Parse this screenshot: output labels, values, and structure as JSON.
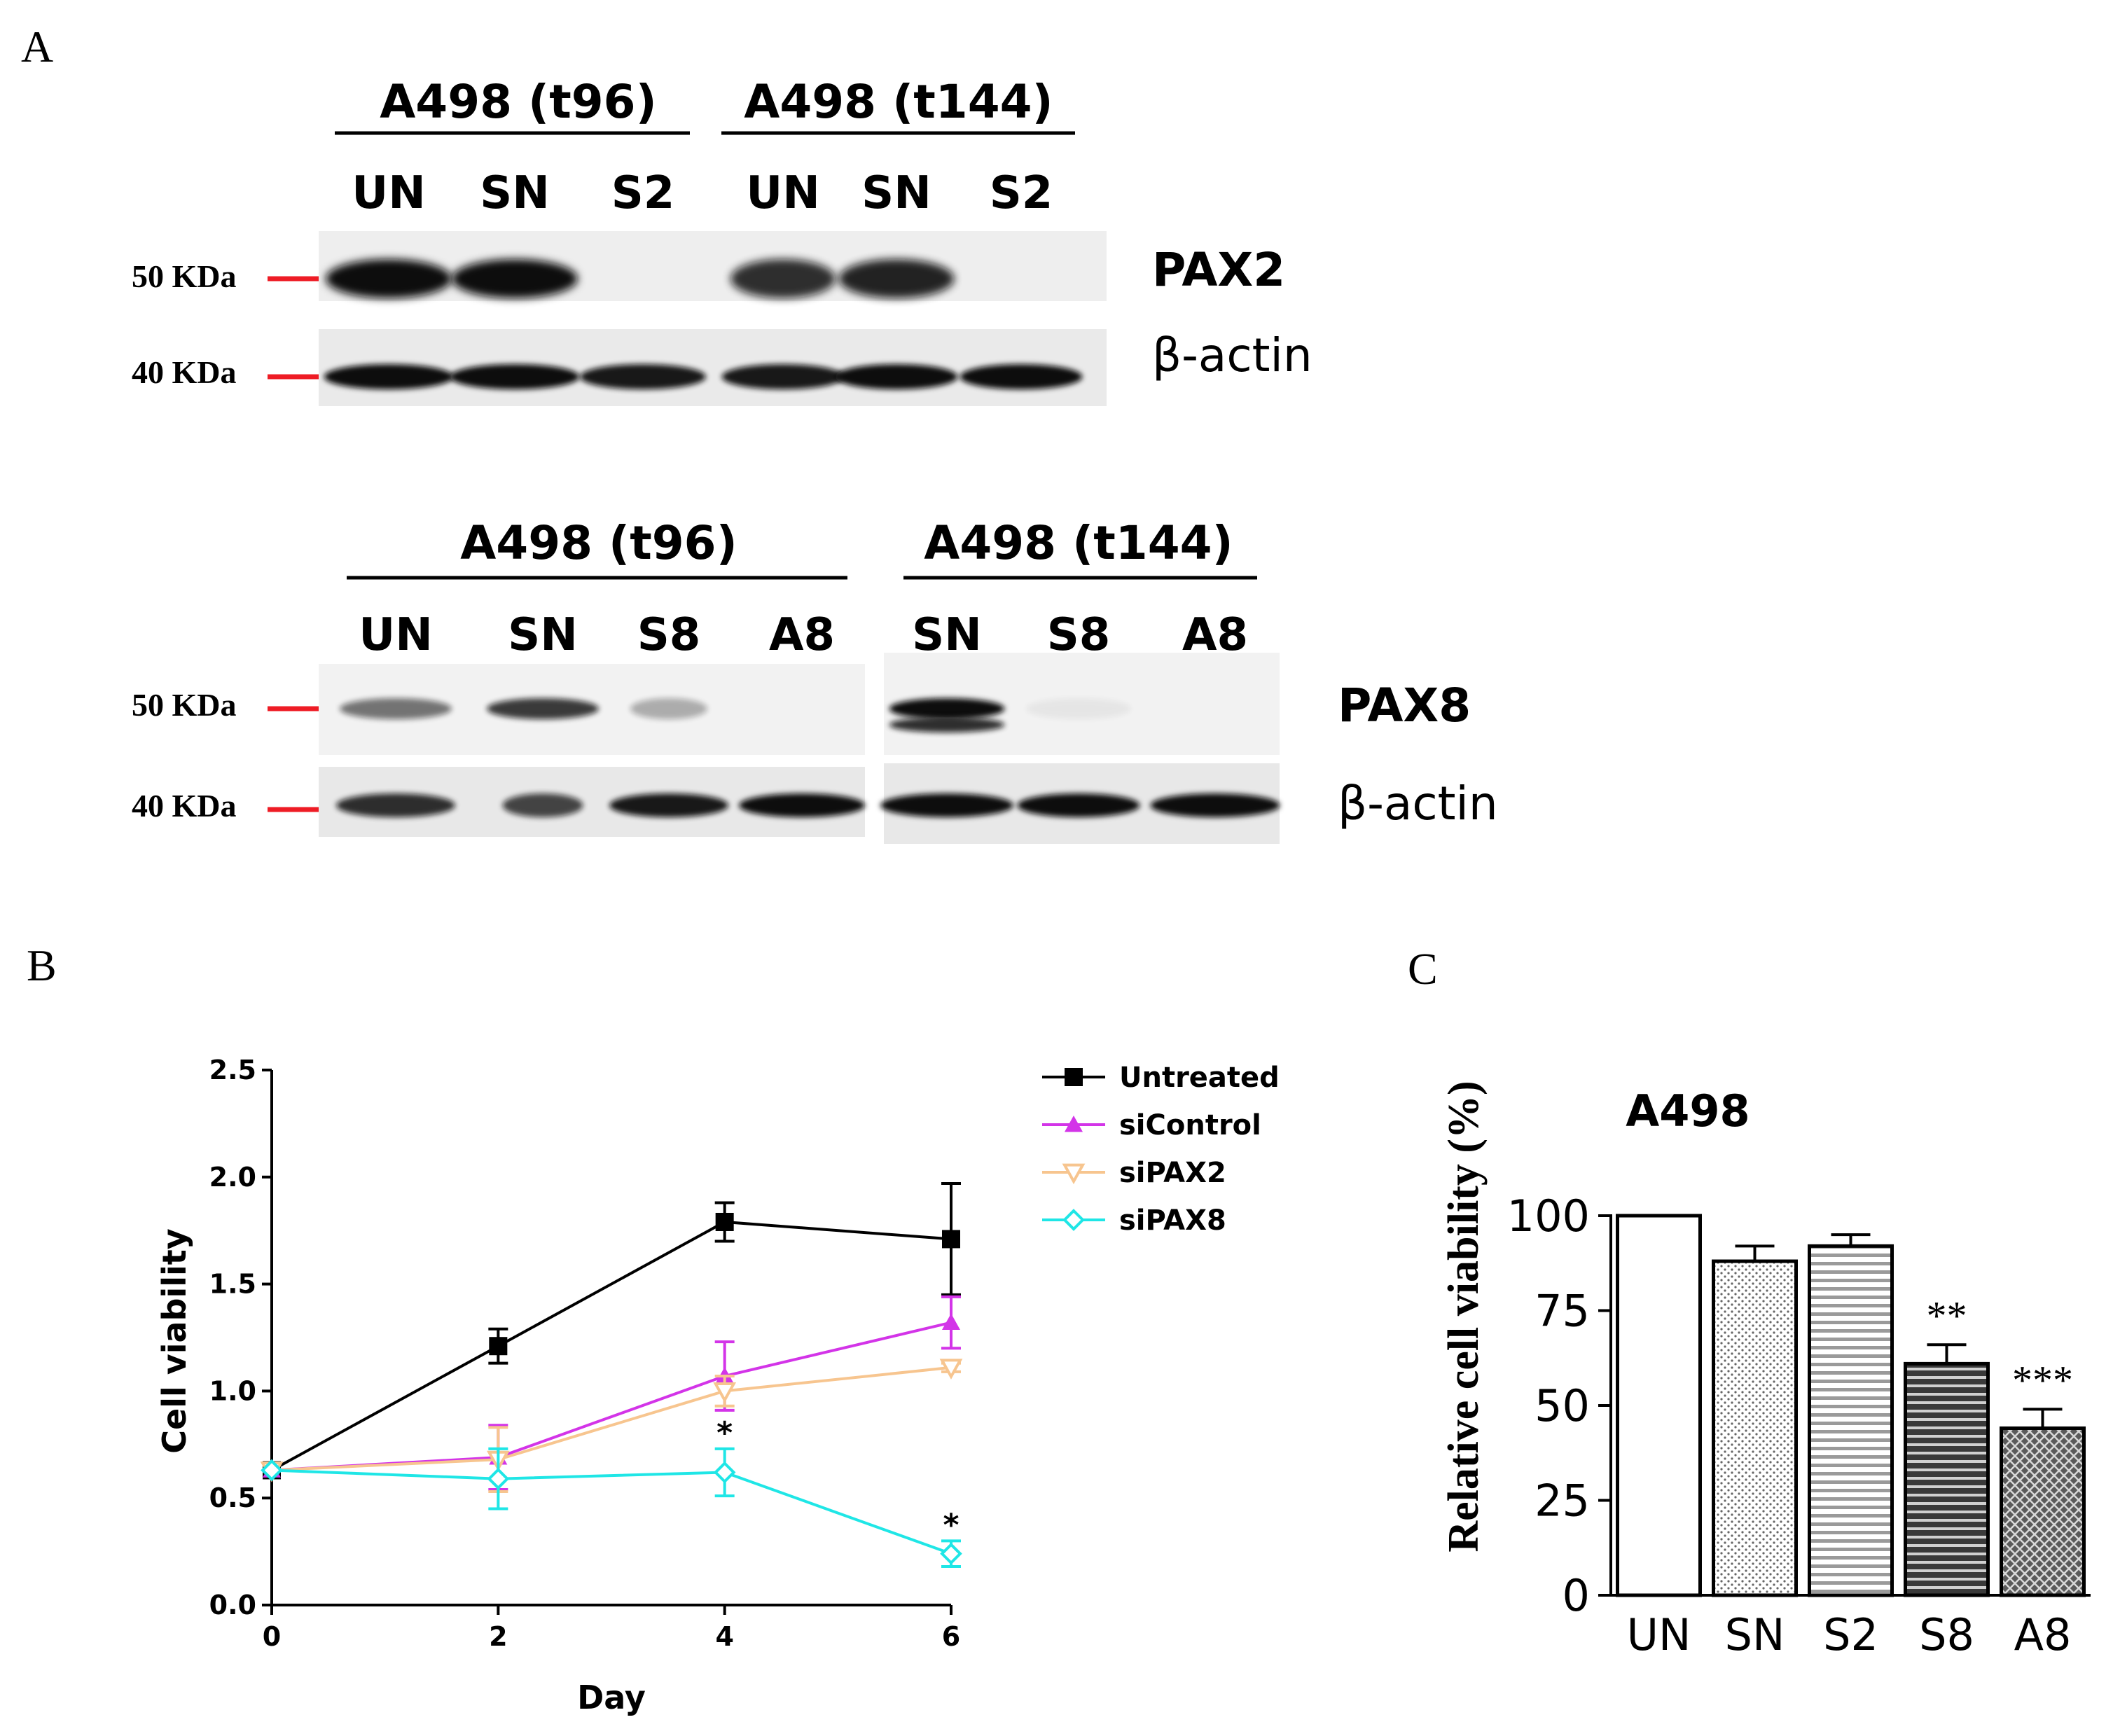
{
  "panel_labels": {
    "a": "A",
    "b": "B",
    "c": "C"
  },
  "blot_pax2": {
    "group1_title": "A498 (t96)",
    "group2_title": "A498 (t144)",
    "lanes": [
      "UN",
      "SN",
      "S2",
      "UN",
      "SN",
      "S2"
    ],
    "target_label": "PAX2",
    "loading_label": "β-actin",
    "marker_upper": "50 KDa",
    "marker_lower": "40 KDa",
    "target_band_intensity": [
      1.0,
      1.0,
      0.0,
      0.85,
      0.9,
      0.0
    ],
    "actin_band_intensity": [
      1.0,
      1.0,
      0.95,
      0.95,
      1.0,
      1.0
    ]
  },
  "blot_pax8": {
    "group1_title": "A498 (t96)",
    "group2_title": "A498 (t144)",
    "lanes": [
      "UN",
      "SN",
      "S8",
      "A8",
      "SN",
      "S8",
      "A8"
    ],
    "target_label": "PAX8",
    "loading_label": "β-actin",
    "marker_upper": "50 KDa",
    "marker_lower": "40 KDa",
    "target_band_intensity": [
      0.55,
      0.8,
      0.3,
      0.0,
      1.0,
      0.05,
      0.0
    ],
    "actin_band_intensity": [
      0.85,
      0.75,
      0.95,
      1.0,
      1.0,
      1.0,
      1.0
    ]
  },
  "colors": {
    "marker_line": "#ee1c25",
    "untreated": "#000000",
    "siControl": "#d334e8",
    "siPAX2": "#f7c58f",
    "siPAX8": "#1fe6e6"
  },
  "chart_data": [
    {
      "type": "line",
      "xlabel": "Day",
      "ylabel": "Cell viability",
      "xlim": [
        0,
        6
      ],
      "ylim": [
        0,
        2.5
      ],
      "x_ticks": [
        "0",
        "2",
        "4",
        "6"
      ],
      "y_ticks": [
        "0.0",
        "0.5",
        "1.0",
        "1.5",
        "2.0",
        "2.5"
      ],
      "x": [
        0,
        2,
        4,
        6
      ],
      "legend_position": "top-right",
      "series": [
        {
          "name": "Untreated",
          "marker": "square",
          "values": [
            0.63,
            1.21,
            1.79,
            1.71
          ],
          "errors": [
            0.0,
            0.08,
            0.09,
            0.26
          ]
        },
        {
          "name": "siControl",
          "marker": "triangle-up",
          "values": [
            0.63,
            0.69,
            1.07,
            1.32
          ],
          "errors": [
            0.0,
            0.15,
            0.16,
            0.12
          ]
        },
        {
          "name": "siPAX2",
          "marker": "triangle-down",
          "values": [
            0.63,
            0.68,
            1.0,
            1.11
          ],
          "errors": [
            0.0,
            0.15,
            0.07,
            0.02
          ]
        },
        {
          "name": "siPAX8",
          "marker": "diamond",
          "values": [
            0.63,
            0.59,
            0.62,
            0.24
          ],
          "errors": [
            0.0,
            0.14,
            0.11,
            0.06
          ]
        }
      ],
      "annotations": [
        {
          "x": 4,
          "y": 0.73,
          "text": "*"
        },
        {
          "x": 6,
          "y": 0.3,
          "text": "*"
        }
      ]
    },
    {
      "type": "bar",
      "title": "A498",
      "ylabel": "Relative cell viability (%)",
      "ylim": [
        0,
        100
      ],
      "y_ticks": [
        "0",
        "25",
        "50",
        "75",
        "100"
      ],
      "categories": [
        "UN",
        "SN",
        "S2",
        "S8",
        "A8"
      ],
      "values": [
        100,
        88,
        92,
        61,
        44
      ],
      "errors": [
        0,
        4,
        3,
        5,
        5
      ],
      "fill_patterns": [
        "none",
        "dots",
        "horizontal-lines",
        "dark-horizontal-lines",
        "crosshatch"
      ],
      "significance": [
        "",
        "",
        "",
        "**",
        "***"
      ]
    }
  ]
}
